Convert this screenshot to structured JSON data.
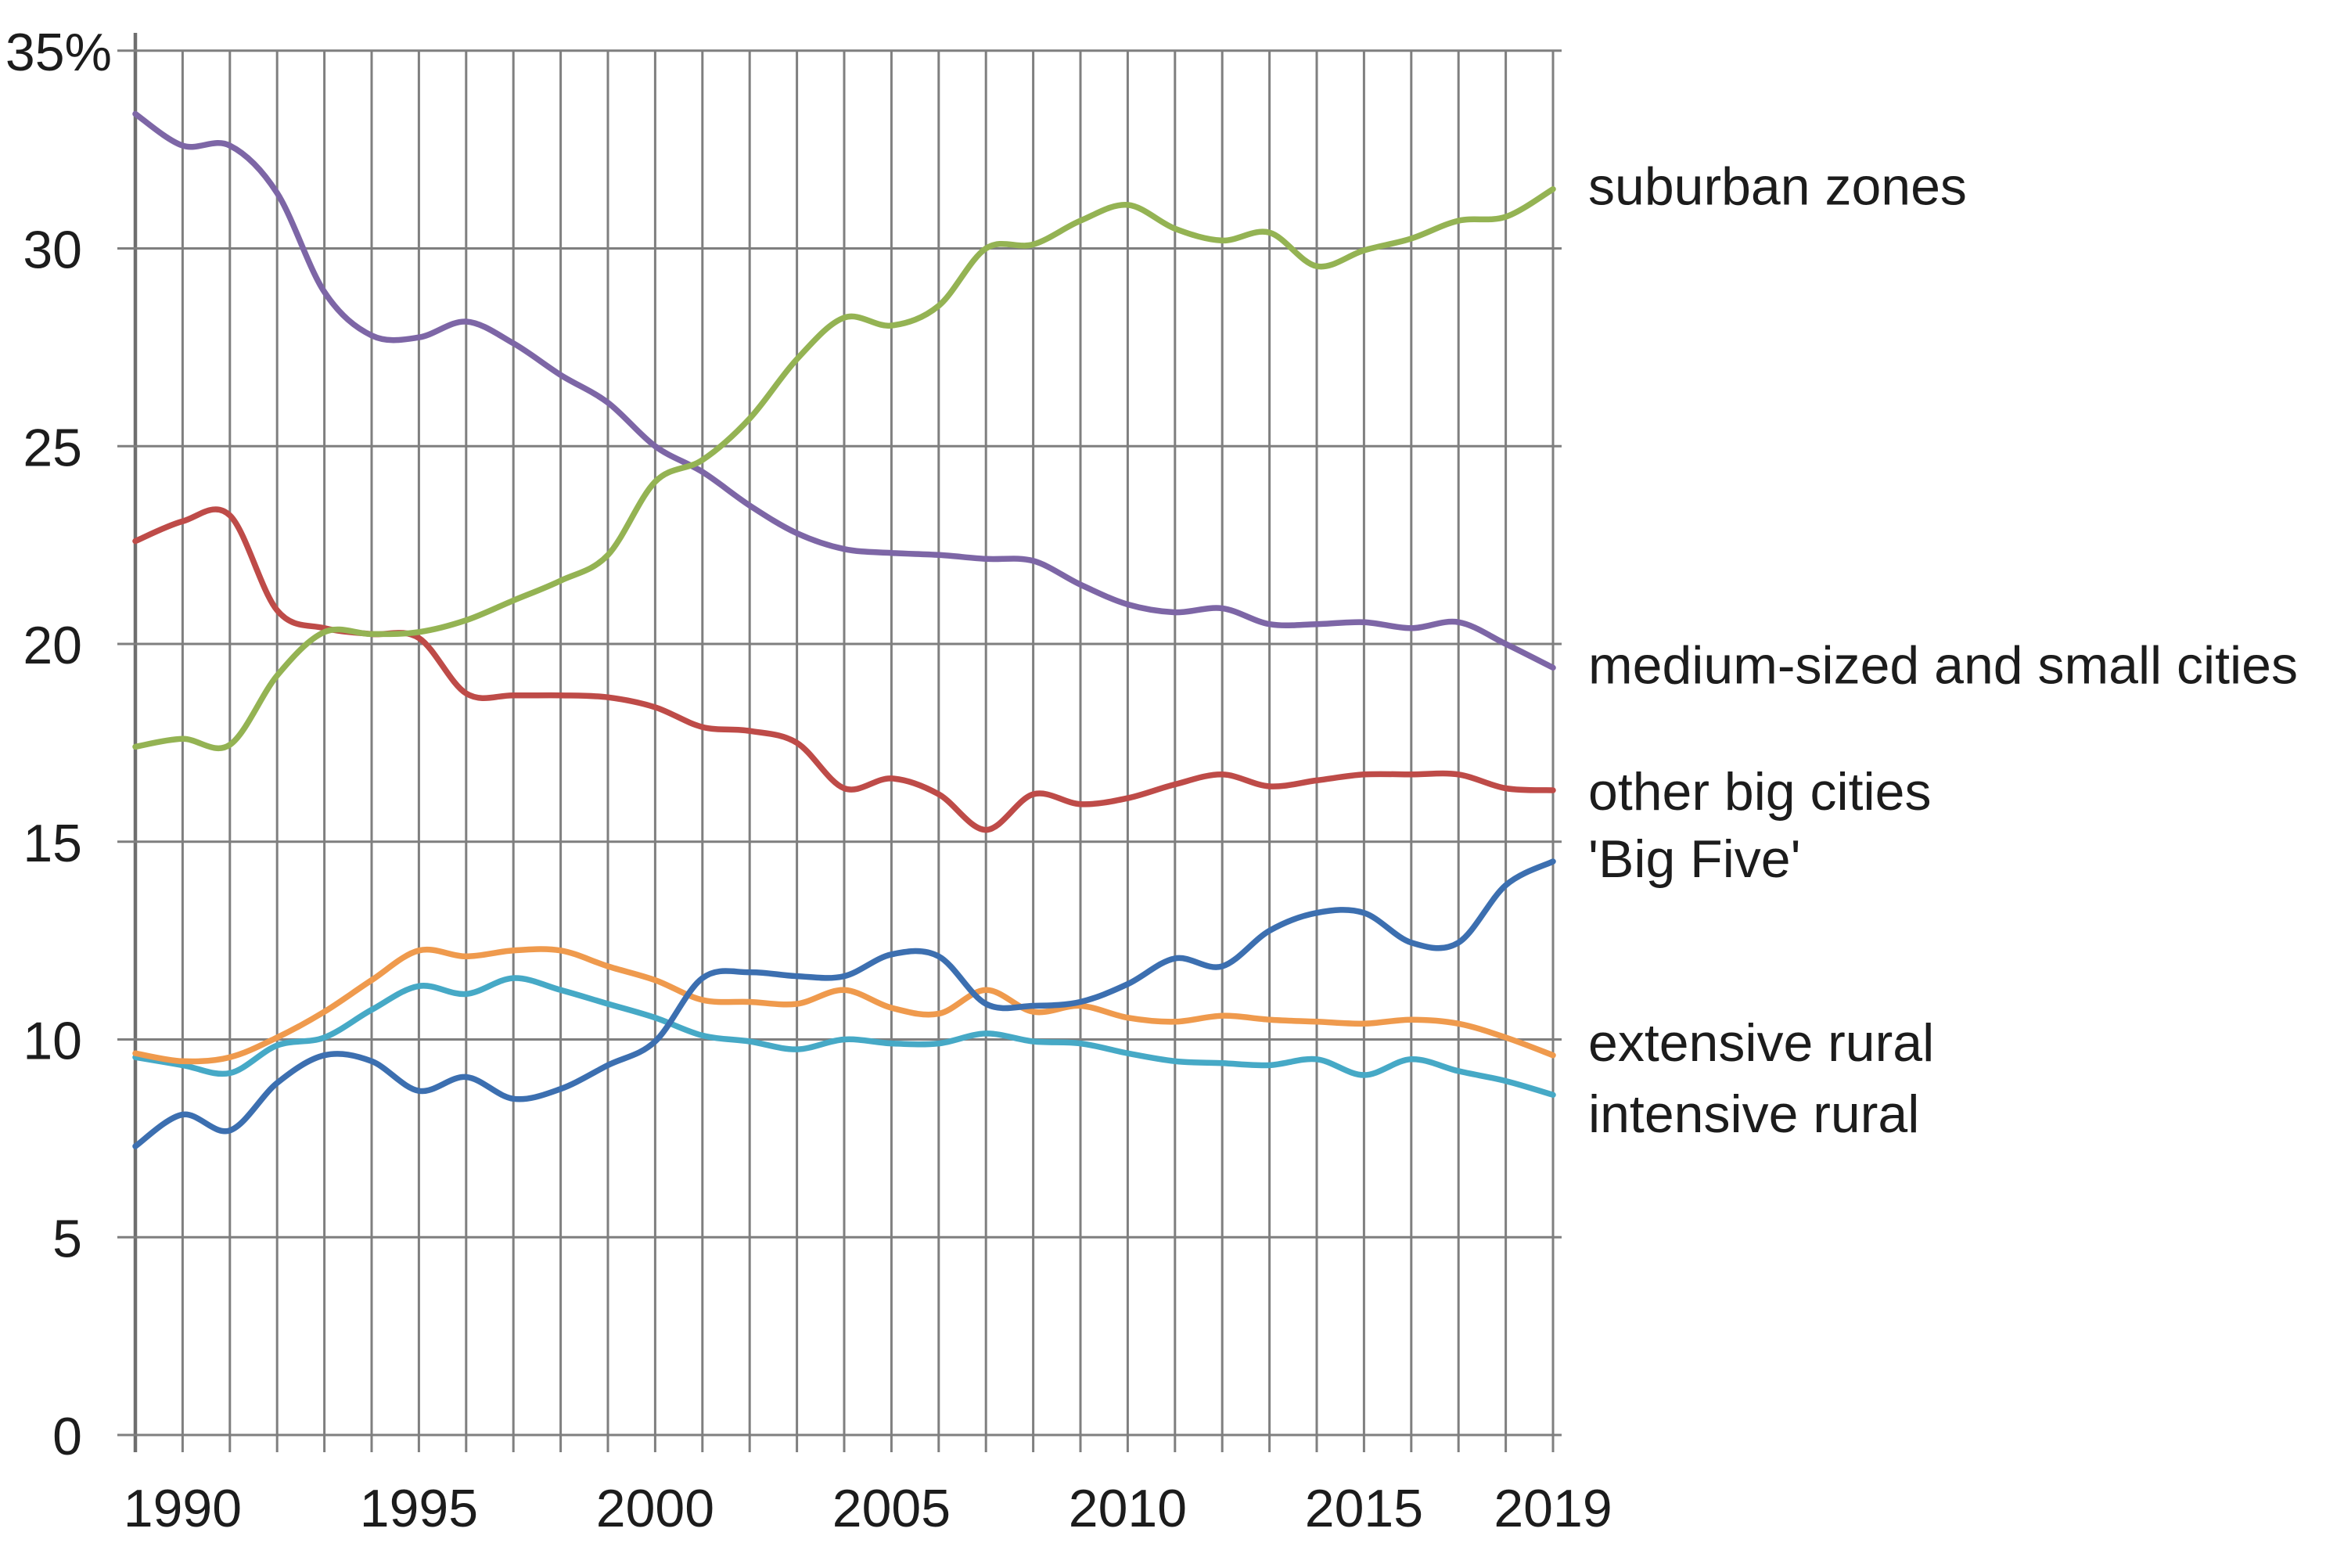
{
  "chart_data": {
    "type": "line",
    "title": "",
    "xlabel": "",
    "ylabel": "",
    "xlim": [
      1989,
      2019
    ],
    "ylim": [
      0,
      35
    ],
    "grid": {
      "vertical": "every year",
      "horizontal": "every 5 percent"
    },
    "legend_position": "right of plot, aligned with line endpoints",
    "axis_color": "#7f7f7f",
    "text_color": "#1c1c1c",
    "x": [
      1989,
      1990,
      1991,
      1992,
      1993,
      1994,
      1995,
      1996,
      1997,
      1998,
      1999,
      2000,
      2001,
      2002,
      2003,
      2004,
      2005,
      2006,
      2007,
      2008,
      2009,
      2010,
      2011,
      2012,
      2013,
      2014,
      2015,
      2016,
      2017,
      2018,
      2019
    ],
    "x_ticks": [
      {
        "value": 1990,
        "label": "1990"
      },
      {
        "value": 1995,
        "label": "1995"
      },
      {
        "value": 2000,
        "label": "2000"
      },
      {
        "value": 2005,
        "label": "2005"
      },
      {
        "value": 2010,
        "label": "2010"
      },
      {
        "value": 2015,
        "label": "2015"
      },
      {
        "value": 2019,
        "label": "2019"
      }
    ],
    "y_ticks": [
      {
        "value": 0,
        "label": "0"
      },
      {
        "value": 5,
        "label": "5"
      },
      {
        "value": 10,
        "label": "10"
      },
      {
        "value": 15,
        "label": "15"
      },
      {
        "value": 20,
        "label": "20"
      },
      {
        "value": 25,
        "label": "25"
      },
      {
        "value": 30,
        "label": "30"
      },
      {
        "value": 35,
        "label": "35%"
      }
    ],
    "series": [
      {
        "name": "medium-sized and small cities",
        "color": "#7d66a6",
        "label_offset": 0.1,
        "values": [
          33.4,
          32.6,
          32.6,
          31.4,
          28.9,
          27.8,
          27.75,
          28.15,
          27.6,
          26.8,
          26.1,
          25.0,
          24.35,
          23.5,
          22.8,
          22.4,
          22.3,
          22.25,
          22.15,
          22.1,
          21.5,
          21.0,
          20.8,
          20.9,
          20.5,
          20.5,
          20.55,
          20.4,
          20.55,
          20.0,
          19.4
        ]
      },
      {
        "name": "other big cities",
        "color": "#be4b48",
        "label_offset": 0.0,
        "values": [
          22.6,
          23.1,
          23.25,
          20.85,
          20.4,
          20.25,
          20.15,
          18.75,
          18.7,
          18.7,
          18.65,
          18.4,
          17.9,
          17.8,
          17.5,
          16.35,
          16.6,
          16.2,
          15.3,
          16.2,
          15.95,
          16.1,
          16.45,
          16.7,
          16.4,
          16.55,
          16.7,
          16.7,
          16.7,
          16.35,
          16.3
        ]
      },
      {
        "name": "intensive rural",
        "color": "#46a9c6",
        "label_offset": -0.45,
        "values": [
          9.55,
          9.35,
          9.15,
          9.85,
          10.05,
          10.75,
          11.35,
          11.15,
          11.55,
          11.25,
          10.9,
          10.55,
          10.1,
          9.95,
          9.75,
          10.0,
          9.9,
          9.9,
          10.15,
          9.95,
          9.9,
          9.65,
          9.45,
          9.4,
          9.35,
          9.5,
          9.1,
          9.5,
          9.2,
          8.95,
          8.6
        ]
      },
      {
        "name": "extensive rural",
        "color": "#ef9a4d",
        "label_offset": 0.35,
        "values": [
          9.65,
          9.45,
          9.55,
          10.05,
          10.7,
          11.5,
          12.25,
          12.1,
          12.25,
          12.25,
          11.85,
          11.5,
          11.0,
          10.95,
          10.9,
          11.25,
          10.8,
          10.65,
          11.25,
          10.7,
          10.85,
          10.55,
          10.45,
          10.6,
          10.5,
          10.45,
          10.4,
          10.5,
          10.4,
          10.05,
          9.6
        ]
      },
      {
        "name": "suburban zones",
        "color": "#94b353",
        "label_offset": 0.1,
        "values": [
          17.4,
          17.6,
          17.45,
          19.2,
          20.3,
          20.25,
          20.3,
          20.6,
          21.1,
          21.6,
          22.25,
          24.1,
          24.65,
          25.7,
          27.2,
          28.25,
          28.05,
          28.55,
          30.0,
          30.1,
          30.7,
          31.1,
          30.5,
          30.2,
          30.4,
          29.55,
          29.95,
          30.25,
          30.7,
          30.8,
          31.5
        ]
      },
      {
        "name": "'Big Five'",
        "color": "#3c6fb0",
        "label_offset": 0.1,
        "values": [
          7.3,
          8.1,
          7.7,
          8.9,
          9.6,
          9.45,
          8.7,
          9.05,
          8.5,
          8.75,
          9.35,
          9.95,
          11.55,
          11.7,
          11.6,
          11.6,
          12.15,
          12.1,
          10.9,
          10.85,
          10.95,
          11.4,
          12.05,
          11.85,
          12.75,
          13.2,
          13.2,
          12.45,
          12.45,
          13.9,
          14.5
        ]
      }
    ]
  }
}
